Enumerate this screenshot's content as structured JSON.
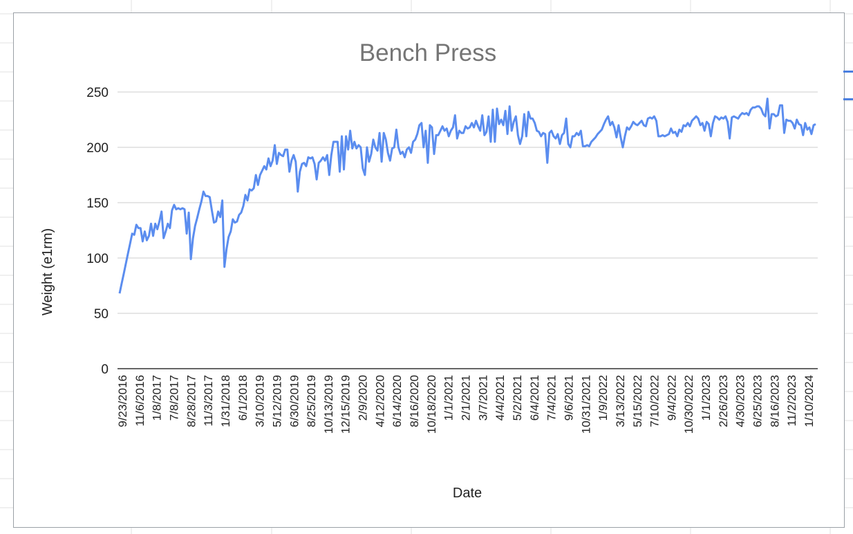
{
  "chart_data": {
    "type": "line",
    "title": "Bench Press",
    "xlabel": "Date",
    "ylabel": "Weight (e1rm)",
    "ylim": [
      0,
      250
    ],
    "yticks": [
      "0",
      "50",
      "100",
      "150",
      "200",
      "250"
    ],
    "grid": true,
    "color": "#5b8def",
    "x_tick_labels": [
      "9/23/2016",
      "11/6/2016",
      "1/8/2017",
      "7/8/2017",
      "8/28/2017",
      "11/3/2017",
      "1/31/2018",
      "6/1/2018",
      "3/10/2019",
      "5/12/2019",
      "6/30/2019",
      "8/25/2019",
      "10/13/2019",
      "12/15/2019",
      "2/9/2020",
      "4/12/2020",
      "6/14/2020",
      "8/16/2020",
      "10/18/2020",
      "1/1/2021",
      "2/1/2021",
      "3/7/2021",
      "4/4/2021",
      "5/2/2021",
      "6/4/2021",
      "7/4/2021",
      "9/6/2021",
      "10/31/2021",
      "1/9/2022",
      "3/13/2022",
      "5/15/2022",
      "7/10/2022",
      "9/4/2022",
      "10/30/2022",
      "1/1/2023",
      "2/26/2023",
      "4/30/2023",
      "6/25/2023",
      "8/16/2023",
      "11/2/2023",
      "1/10/2024"
    ],
    "series": [
      {
        "values": [
          68,
          77,
          86,
          95,
          104,
          113,
          122,
          121,
          130,
          127,
          127,
          115,
          124,
          116,
          120,
          131,
          120,
          131,
          126,
          133,
          142,
          118,
          124,
          131,
          127,
          143,
          148,
          144,
          145,
          144,
          145,
          144,
          122,
          141,
          99,
          118,
          129,
          136,
          144,
          151,
          160,
          156,
          156,
          155,
          143,
          132,
          133,
          142,
          137,
          152,
          92,
          108,
          119,
          124,
          135,
          132,
          133,
          139,
          141,
          147,
          157,
          152,
          162,
          161,
          163,
          175,
          166,
          175,
          179,
          183,
          180,
          190,
          183,
          188,
          202,
          185,
          195,
          193,
          192,
          198,
          198,
          178,
          188,
          193,
          187,
          160,
          178,
          185,
          186,
          183,
          191,
          190,
          191,
          185,
          171,
          186,
          188,
          191,
          188,
          193,
          175,
          193,
          205,
          205,
          205,
          178,
          210,
          180,
          210,
          198,
          215,
          199,
          205,
          199,
          202,
          200,
          181,
          175,
          200,
          187,
          194,
          207,
          200,
          197,
          213,
          187,
          213,
          207,
          195,
          188,
          199,
          200,
          216,
          200,
          194,
          196,
          191,
          198,
          200,
          195,
          205,
          207,
          212,
          220,
          222,
          200,
          215,
          186,
          220,
          218,
          194,
          211,
          211,
          215,
          219,
          215,
          217,
          210,
          215,
          218,
          229,
          208,
          215,
          213,
          213,
          219,
          217,
          218,
          222,
          218,
          224,
          219,
          215,
          229,
          211,
          214,
          228,
          205,
          234,
          205,
          235,
          221,
          225,
          220,
          233,
          212,
          237,
          215,
          223,
          228,
          211,
          203,
          210,
          230,
          210,
          232,
          226,
          226,
          222,
          215,
          214,
          210,
          213,
          212,
          186,
          213,
          215,
          210,
          208,
          212,
          203,
          211,
          213,
          226,
          203,
          200,
          210,
          210,
          213,
          211,
          215,
          201,
          201,
          202,
          201,
          205,
          207,
          209,
          212,
          214,
          216,
          221,
          225,
          228,
          220,
          223,
          218,
          209,
          220,
          209,
          200,
          210,
          218,
          216,
          219,
          223,
          221,
          220,
          222,
          224,
          220,
          219,
          226,
          227,
          226,
          228,
          224,
          210,
          210,
          211,
          210,
          211,
          212,
          217,
          213,
          214,
          210,
          216,
          214,
          220,
          219,
          222,
          219,
          224,
          226,
          228,
          226,
          220,
          222,
          215,
          223,
          221,
          210,
          222,
          228,
          227,
          225,
          227,
          226,
          228,
          223,
          208,
          227,
          228,
          227,
          226,
          229,
          231,
          230,
          231,
          229,
          234,
          236,
          236,
          237,
          237,
          235,
          230,
          228,
          244,
          217,
          230,
          230,
          228,
          229,
          238,
          238,
          213,
          225,
          224,
          224,
          222,
          217,
          225,
          221,
          220,
          211,
          222,
          216,
          218,
          212,
          220,
          221
        ]
      }
    ]
  }
}
